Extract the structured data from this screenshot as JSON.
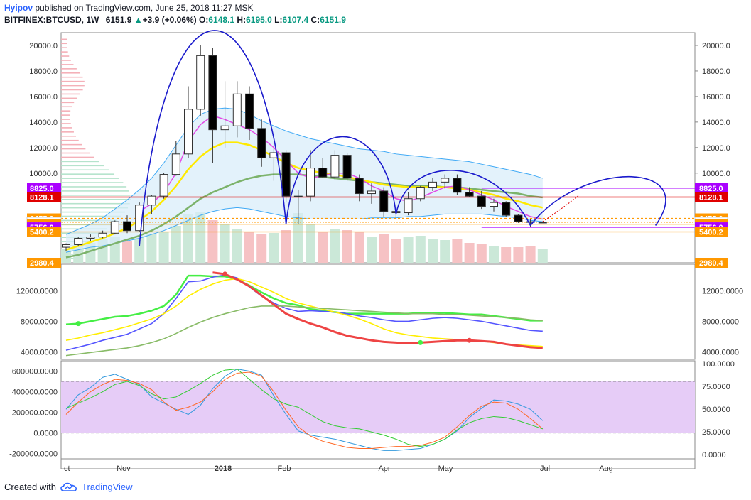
{
  "header": {
    "author": "Hyipov",
    "published": "published on TradingView.com, June 25, 2018 11:27 MSK",
    "symbol": "BITFINEX:BTCUSD, 1W",
    "last": "6151.9",
    "change_arrow": "▲",
    "change": "+3.9 (+0.06%)",
    "o_label": "O:",
    "o": "6148.1",
    "h_label": "H:",
    "h": "6195.0",
    "l_label": "L:",
    "l": "6107.4",
    "c_label": "C:",
    "c": "6151.9"
  },
  "footer": {
    "created_with": "Created with",
    "brand": "TradingView",
    "logo_icon": "tradingview-cloud-icon"
  },
  "colors": {
    "up": "#26a69a",
    "down": "#000000",
    "arc": "#1a1acc",
    "band": "#d7ecfa",
    "osc_bg": "#e6ccf7"
  },
  "chart_data": [
    {
      "type": "candlestick",
      "title": "BITFINEX:BTCUSD, 1W",
      "ylim": [
        2980,
        21000
      ],
      "yticks": [
        "20000.0",
        "18000.0",
        "16000.0",
        "14000.0",
        "12000.0",
        "10000.0"
      ],
      "xticks": [
        "ct",
        "Nov",
        "2018",
        "Feb",
        "Apr",
        "May",
        "Jul",
        "Aug"
      ],
      "candles": [
        {
          "o": 4200,
          "h": 4500,
          "l": 3900,
          "c": 4400
        },
        {
          "o": 4400,
          "h": 5000,
          "l": 4300,
          "c": 4900
        },
        {
          "o": 4900,
          "h": 5200,
          "l": 4700,
          "c": 5000
        },
        {
          "o": 5000,
          "h": 5500,
          "l": 4900,
          "c": 5300
        },
        {
          "o": 5300,
          "h": 6300,
          "l": 5200,
          "c": 6200
        },
        {
          "o": 6200,
          "h": 6700,
          "l": 5300,
          "c": 5500
        },
        {
          "o": 5500,
          "h": 7700,
          "l": 5400,
          "c": 7500
        },
        {
          "o": 7500,
          "h": 8300,
          "l": 6800,
          "c": 8200
        },
        {
          "o": 8200,
          "h": 10000,
          "l": 8000,
          "c": 9900
        },
        {
          "o": 9900,
          "h": 12500,
          "l": 9800,
          "c": 11500
        },
        {
          "o": 11500,
          "h": 16800,
          "l": 11200,
          "c": 15000
        },
        {
          "o": 15000,
          "h": 20000,
          "l": 14500,
          "c": 19200
        },
        {
          "o": 19200,
          "h": 19800,
          "l": 10800,
          "c": 13400
        },
        {
          "o": 13400,
          "h": 17200,
          "l": 12000,
          "c": 13700
        },
        {
          "o": 13700,
          "h": 17200,
          "l": 12800,
          "c": 16200
        },
        {
          "o": 16200,
          "h": 16800,
          "l": 12600,
          "c": 13500
        },
        {
          "o": 13500,
          "h": 14200,
          "l": 10500,
          "c": 11200
        },
        {
          "o": 11200,
          "h": 12000,
          "l": 9400,
          "c": 11600
        },
        {
          "o": 11600,
          "h": 11800,
          "l": 7700,
          "c": 8200
        },
        {
          "o": 8200,
          "h": 8700,
          "l": 6000,
          "c": 8200
        },
        {
          "o": 8200,
          "h": 11800,
          "l": 7800,
          "c": 10400
        },
        {
          "o": 10400,
          "h": 11200,
          "l": 9600,
          "c": 9700
        },
        {
          "o": 9700,
          "h": 11800,
          "l": 9500,
          "c": 11400
        },
        {
          "o": 11400,
          "h": 11600,
          "l": 9400,
          "c": 9600
        },
        {
          "o": 9600,
          "h": 9900,
          "l": 7800,
          "c": 8400
        },
        {
          "o": 8400,
          "h": 9200,
          "l": 7600,
          "c": 8600
        },
        {
          "o": 8600,
          "h": 8900,
          "l": 6600,
          "c": 7000
        },
        {
          "o": 7000,
          "h": 7400,
          "l": 6500,
          "c": 6900
        },
        {
          "o": 6900,
          "h": 8500,
          "l": 6700,
          "c": 8000
        },
        {
          "o": 8000,
          "h": 9000,
          "l": 7800,
          "c": 8900
        },
        {
          "o": 8900,
          "h": 9600,
          "l": 8600,
          "c": 9300
        },
        {
          "o": 9300,
          "h": 9900,
          "l": 8800,
          "c": 9600
        },
        {
          "o": 9600,
          "h": 9900,
          "l": 8300,
          "c": 8500
        },
        {
          "o": 8500,
          "h": 8900,
          "l": 8100,
          "c": 8200
        },
        {
          "o": 8200,
          "h": 8600,
          "l": 7200,
          "c": 7400
        },
        {
          "o": 7400,
          "h": 8000,
          "l": 7000,
          "c": 7700
        },
        {
          "o": 7700,
          "h": 7800,
          "l": 6600,
          "c": 6700
        },
        {
          "o": 6700,
          "h": 6800,
          "l": 6100,
          "c": 6200
        },
        {
          "o": 6200,
          "h": 6400,
          "l": 5800,
          "c": 6150
        },
        {
          "o": 6148,
          "h": 6195,
          "l": 6107,
          "c": 6152
        }
      ],
      "levels": [
        {
          "label": "8825.0",
          "value": 8825,
          "color": "#aa00ff"
        },
        {
          "label": "8128.1",
          "value": 8128,
          "color": "#e00000"
        },
        {
          "label": "6455.0",
          "value": 6455,
          "color": "#ff9800"
        },
        {
          "label": "6151.9",
          "value": 6152,
          "color": "#ffffff"
        },
        {
          "label": "6000.0",
          "value": 6000,
          "color": "#ff9800"
        },
        {
          "label": "5756.0",
          "value": 5756,
          "color": "#aa00ff"
        },
        {
          "label": "5400.2",
          "value": 5400,
          "color": "#ff9800"
        },
        {
          "label": "2980.4",
          "value": 2980,
          "color": "#ff9800"
        }
      ]
    },
    {
      "type": "line",
      "ylim": [
        3000,
        15500
      ],
      "yticks": [
        "12000.0000",
        "8000.0000",
        "4000.0000"
      ],
      "series": [
        {
          "color": "#44ee44",
          "values": [
            7600,
            7700,
            8000,
            8300,
            8600,
            8700,
            9000,
            9400,
            10000,
            11500,
            14000,
            14000,
            13900,
            13900,
            13500,
            12700,
            11800,
            11000,
            10400,
            10100,
            9600,
            9400,
            9200,
            9000,
            9000,
            9000,
            9000,
            9000,
            9000,
            9100,
            9100,
            9100,
            9000,
            8900,
            8900,
            8700,
            8500,
            8300,
            8100,
            8100
          ]
        },
        {
          "color": "#5555ff",
          "values": [
            4200,
            4600,
            5000,
            5500,
            5900,
            6300,
            7000,
            7700,
            9000,
            11000,
            13200,
            13300,
            13800,
            14100,
            13700,
            12500,
            11300,
            10400,
            9700,
            9300,
            9400,
            9300,
            9200,
            9000,
            8700,
            8500,
            8200,
            8000,
            8000,
            8200,
            8400,
            8500,
            8400,
            8200,
            8000,
            7700,
            7400,
            7100,
            6800,
            6700
          ]
        },
        {
          "color": "#ffee00",
          "values": [
            5500,
            5800,
            6200,
            6500,
            6900,
            7300,
            7800,
            8300,
            9000,
            10000,
            11300,
            12200,
            12900,
            13400,
            13600,
            13200,
            12500,
            11800,
            11000,
            10400,
            10000,
            9600,
            9200,
            8800,
            8300,
            7700,
            7000,
            6500,
            6200,
            6000,
            5800,
            5700,
            5600,
            5500,
            5400,
            5200,
            5000,
            4900,
            4800,
            4700
          ]
        },
        {
          "color": "#88bb66",
          "values": [
            3500,
            3700,
            3900,
            4100,
            4300,
            4500,
            4800,
            5200,
            5700,
            6400,
            7200,
            7900,
            8500,
            9000,
            9400,
            9800,
            10000,
            10000,
            10000,
            9900,
            9800,
            9700,
            9600,
            9500,
            9400,
            9300,
            9200,
            9100,
            9000,
            9000,
            9000,
            8900,
            8900,
            8800,
            8700,
            8600,
            8500,
            8400,
            8200,
            8100
          ]
        },
        {
          "color": "#ee4444",
          "values": [
            null,
            null,
            null,
            null,
            null,
            null,
            null,
            null,
            null,
            null,
            null,
            null,
            14400,
            14200,
            13500,
            12600,
            11400,
            10200,
            9000,
            8300,
            7700,
            7200,
            6600,
            6100,
            5800,
            5500,
            5300,
            5200,
            5100,
            5200,
            5300,
            5400,
            5500,
            5500,
            5400,
            5300,
            5000,
            4800,
            4600,
            4500
          ]
        }
      ]
    },
    {
      "type": "line",
      "ylim": [
        -250000,
        700000
      ],
      "yticks_left": [
        "600000.0000",
        "400000.0000",
        "200000.0000",
        "0.0000",
        "-200000.0000"
      ],
      "yticks_right": [
        "100.0000",
        "75.0000",
        "50.0000",
        "25.0000",
        "0.0000"
      ],
      "series": [
        {
          "color": "#3399dd",
          "values": [
            230000,
            370000,
            440000,
            540000,
            570000,
            520000,
            470000,
            350000,
            290000,
            230000,
            180000,
            270000,
            430000,
            550000,
            620000,
            600000,
            560000,
            360000,
            180000,
            20000,
            -20000,
            -40000,
            -60000,
            -90000,
            -120000,
            -150000,
            -170000,
            -170000,
            -160000,
            -150000,
            -110000,
            -60000,
            20000,
            150000,
            240000,
            320000,
            310000,
            280000,
            230000,
            120000
          ]
        },
        {
          "color": "#ff6622",
          "values": [
            180000,
            300000,
            400000,
            470000,
            520000,
            510000,
            480000,
            420000,
            300000,
            220000,
            250000,
            300000,
            400000,
            520000,
            580000,
            590000,
            550000,
            400000,
            220000,
            60000,
            -30000,
            -80000,
            -110000,
            -140000,
            -150000,
            -150000,
            -140000,
            -130000,
            -130000,
            -120000,
            -90000,
            -40000,
            60000,
            170000,
            260000,
            300000,
            290000,
            230000,
            140000,
            40000
          ]
        },
        {
          "color": "#33cc33",
          "values": [
            240000,
            290000,
            340000,
            400000,
            470000,
            500000,
            460000,
            380000,
            330000,
            350000,
            410000,
            480000,
            560000,
            610000,
            620000,
            520000,
            420000,
            330000,
            280000,
            250000,
            180000,
            110000,
            70000,
            50000,
            40000,
            10000,
            -20000,
            -60000,
            -110000,
            -130000,
            -110000,
            -60000,
            30000,
            100000,
            140000,
            160000,
            150000,
            120000,
            80000,
            40000
          ]
        }
      ]
    }
  ]
}
